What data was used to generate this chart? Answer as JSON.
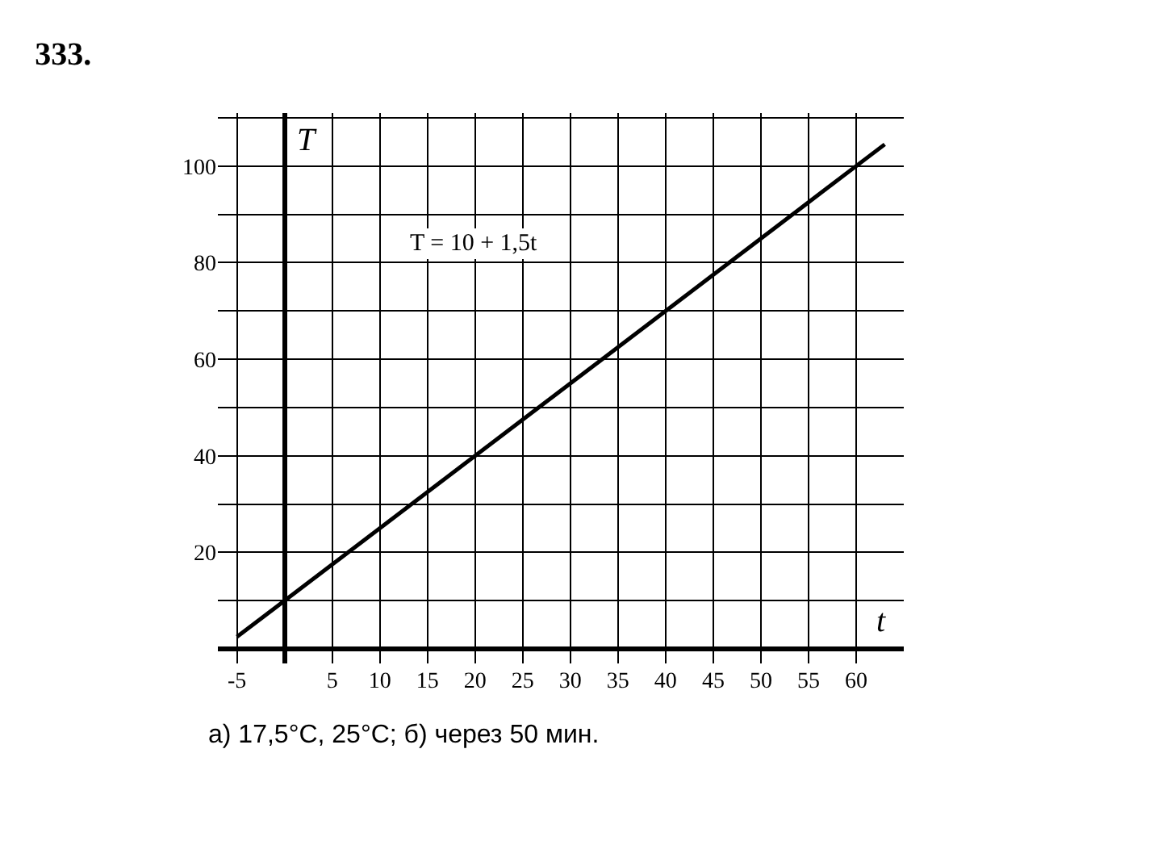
{
  "chart_data": {
    "type": "line",
    "title": "333.",
    "xlabel": "t",
    "ylabel": "T",
    "x": [
      -5,
      63
    ],
    "series": [
      {
        "name": "T = 10 + 1,5t",
        "color": "#000000",
        "values": [
          2.5,
          104.5
        ]
      }
    ],
    "xlim": [
      -7,
      65
    ],
    "ylim": [
      -3,
      111
    ],
    "xticks": [
      -5,
      {
        "value": 0,
        "label": null
      },
      5,
      10,
      15,
      20,
      25,
      30,
      35,
      40,
      45,
      50,
      55,
      60
    ],
    "yticks": [
      {
        "value": 10,
        "label": null
      },
      20,
      {
        "value": 30,
        "label": null
      },
      40,
      {
        "value": 50,
        "label": null
      },
      60,
      {
        "value": 70,
        "label": null
      },
      80,
      {
        "value": 90,
        "label": null
      },
      100,
      {
        "value": 110,
        "label": null
      }
    ],
    "grid": true,
    "legend": false,
    "marker": "none",
    "line_style": "solid",
    "annotations": [
      "а) 17,5°C, 25°C; б) через 50 мин."
    ]
  }
}
